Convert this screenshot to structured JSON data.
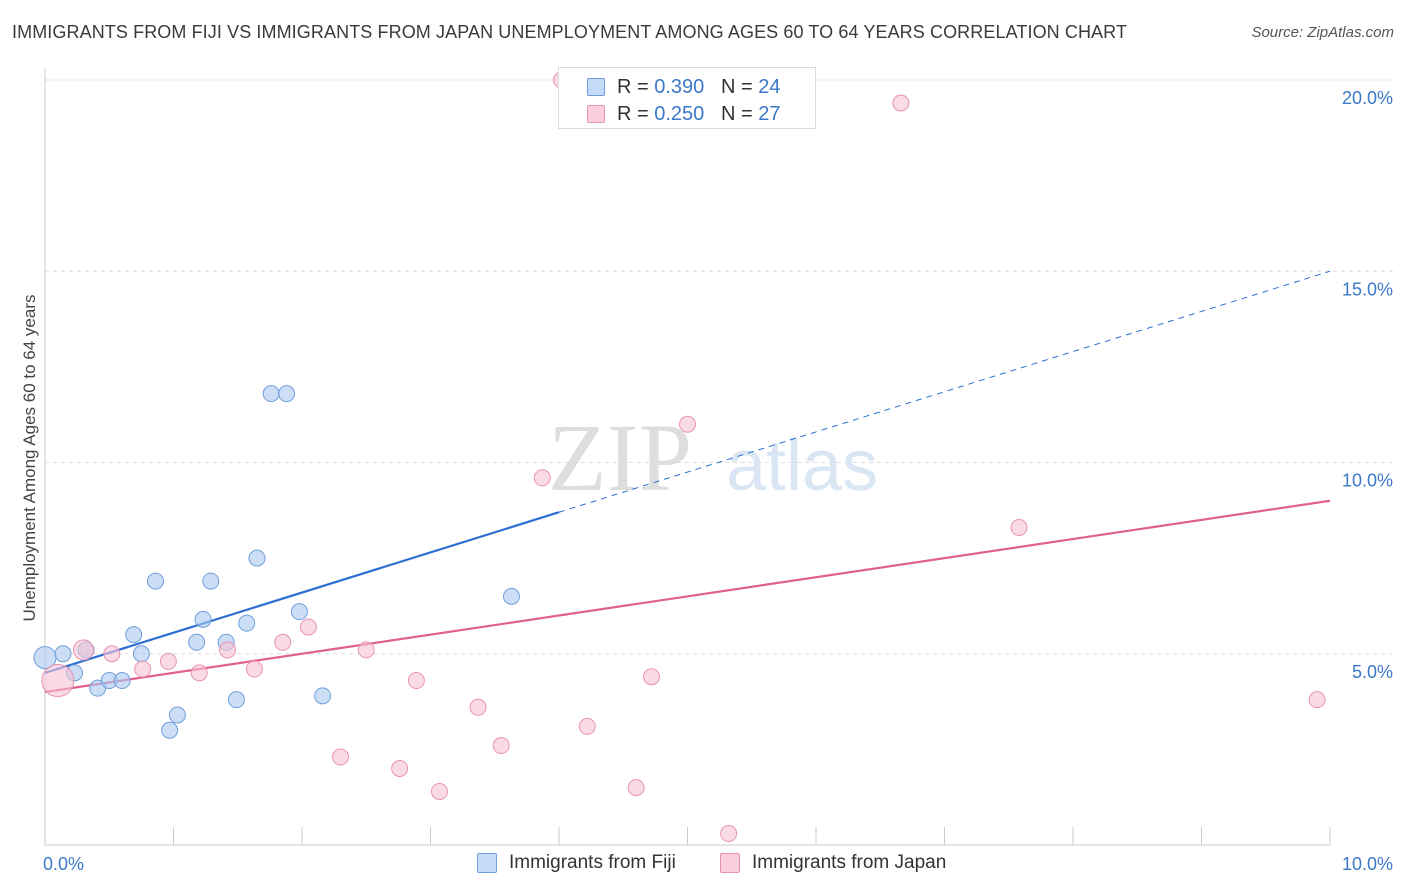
{
  "title": "IMMIGRANTS FROM FIJI VS IMMIGRANTS FROM JAPAN UNEMPLOYMENT AMONG AGES 60 TO 64 YEARS CORRELATION CHART",
  "source": "Source: ZipAtlas.com",
  "watermark": {
    "zip": "ZIP",
    "atlas": "atlas"
  },
  "legend": {
    "fiji": {
      "r_label": "R = ",
      "r_value": "0.390",
      "n_label": "N = ",
      "n_value": "24"
    },
    "japan": {
      "r_label": "R = ",
      "r_value": "0.250",
      "n_label": "N = ",
      "n_value": "27"
    }
  },
  "chart_data": {
    "type": "scatter",
    "title": "IMMIGRANTS FROM FIJI VS IMMIGRANTS FROM JAPAN UNEMPLOYMENT AMONG AGES 60 TO 64 YEARS CORRELATION CHART",
    "xlabel": "",
    "ylabel": "Unemployment Among Ages 60 to 64 years",
    "xlim": [
      0,
      10
    ],
    "ylim": [
      0,
      20
    ],
    "x_tick_labels": {
      "min": "0.0%",
      "max": "10.0%"
    },
    "y_ticks": [
      {
        "value": 5,
        "label": "5.0%"
      },
      {
        "value": 10,
        "label": "10.0%"
      },
      {
        "value": 15,
        "label": "15.0%"
      },
      {
        "value": 20,
        "label": "20.0%"
      }
    ],
    "legend_position": "top-center",
    "series": [
      {
        "name": "Immigrants from Fiji",
        "color": "#a9c8f0",
        "edge_color": "#6f9fdb",
        "line_color": "#2c6fd1",
        "R": 0.39,
        "N": 24,
        "trend": {
          "x0": 0.0,
          "y0": 4.5,
          "x1": 4.0,
          "y1": 8.7,
          "dash_to_x": 10.0,
          "dash_to_y": 15.0
        },
        "points": [
          {
            "x": 0.0,
            "y": 4.9,
            "r": 11
          },
          {
            "x": 0.14,
            "y": 5.0,
            "r": 8
          },
          {
            "x": 0.23,
            "y": 4.5,
            "r": 8
          },
          {
            "x": 0.32,
            "y": 5.1,
            "r": 8
          },
          {
            "x": 0.41,
            "y": 4.1,
            "r": 8
          },
          {
            "x": 0.5,
            "y": 4.3,
            "r": 8
          },
          {
            "x": 0.6,
            "y": 4.3,
            "r": 8
          },
          {
            "x": 0.69,
            "y": 5.5,
            "r": 8
          },
          {
            "x": 0.75,
            "y": 5.0,
            "r": 8
          },
          {
            "x": 0.86,
            "y": 6.9,
            "r": 8
          },
          {
            "x": 0.97,
            "y": 3.0,
            "r": 8
          },
          {
            "x": 1.03,
            "y": 3.4,
            "r": 8
          },
          {
            "x": 1.18,
            "y": 5.3,
            "r": 8
          },
          {
            "x": 1.23,
            "y": 5.9,
            "r": 8
          },
          {
            "x": 1.29,
            "y": 6.9,
            "r": 8
          },
          {
            "x": 1.41,
            "y": 5.3,
            "r": 8
          },
          {
            "x": 1.49,
            "y": 3.8,
            "r": 8
          },
          {
            "x": 1.57,
            "y": 5.8,
            "r": 8
          },
          {
            "x": 1.65,
            "y": 7.5,
            "r": 8
          },
          {
            "x": 1.76,
            "y": 11.8,
            "r": 8
          },
          {
            "x": 1.88,
            "y": 11.8,
            "r": 8
          },
          {
            "x": 1.98,
            "y": 6.1,
            "r": 8
          },
          {
            "x": 2.16,
            "y": 3.9,
            "r": 8
          },
          {
            "x": 3.63,
            "y": 6.5,
            "r": 8
          }
        ]
      },
      {
        "name": "Immigrants from Japan",
        "color": "#f6c3d3",
        "edge_color": "#e893b0",
        "line_color": "#e0608e",
        "R": 0.25,
        "N": 27,
        "trend": {
          "x0": 0.0,
          "y0": 4.0,
          "x1": 10.0,
          "y1": 9.0
        },
        "points": [
          {
            "x": 0.1,
            "y": 4.3,
            "r": 16
          },
          {
            "x": 0.3,
            "y": 5.1,
            "r": 10
          },
          {
            "x": 0.52,
            "y": 5.0,
            "r": 8
          },
          {
            "x": 0.76,
            "y": 4.6,
            "r": 8
          },
          {
            "x": 0.96,
            "y": 4.8,
            "r": 8
          },
          {
            "x": 1.2,
            "y": 4.5,
            "r": 8
          },
          {
            "x": 1.42,
            "y": 5.1,
            "r": 8
          },
          {
            "x": 1.63,
            "y": 4.6,
            "r": 8
          },
          {
            "x": 1.85,
            "y": 5.3,
            "r": 8
          },
          {
            "x": 2.05,
            "y": 5.7,
            "r": 8
          },
          {
            "x": 2.3,
            "y": 2.3,
            "r": 8
          },
          {
            "x": 2.5,
            "y": 5.1,
            "r": 8
          },
          {
            "x": 2.76,
            "y": 2.0,
            "r": 8
          },
          {
            "x": 2.89,
            "y": 4.3,
            "r": 8
          },
          {
            "x": 3.07,
            "y": 1.4,
            "r": 8
          },
          {
            "x": 3.37,
            "y": 3.6,
            "r": 8
          },
          {
            "x": 3.55,
            "y": 2.6,
            "r": 8
          },
          {
            "x": 3.87,
            "y": 9.6,
            "r": 8
          },
          {
            "x": 4.02,
            "y": 20.0,
            "r": 8
          },
          {
            "x": 4.22,
            "y": 3.1,
            "r": 8
          },
          {
            "x": 4.6,
            "y": 1.5,
            "r": 8
          },
          {
            "x": 4.72,
            "y": 4.4,
            "r": 8
          },
          {
            "x": 5.0,
            "y": 11.0,
            "r": 8
          },
          {
            "x": 5.32,
            "y": 0.3,
            "r": 8
          },
          {
            "x": 6.66,
            "y": 19.4,
            "r": 8
          },
          {
            "x": 7.58,
            "y": 8.3,
            "r": 8
          },
          {
            "x": 9.9,
            "y": 3.8,
            "r": 8
          }
        ]
      }
    ]
  }
}
